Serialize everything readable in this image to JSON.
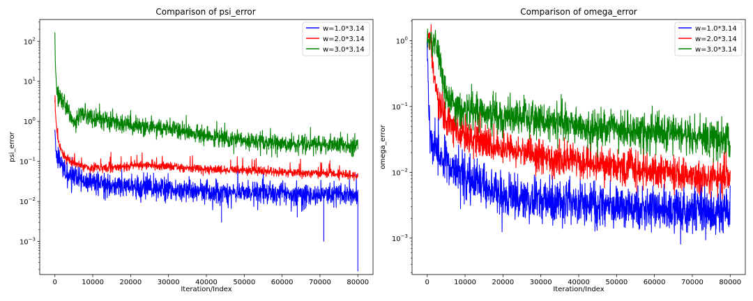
{
  "chart_data": [
    {
      "type": "line",
      "title": "Comparison of psi_error",
      "xlabel": "Iteration/Index",
      "ylabel": "psi_error",
      "yscale": "log",
      "xlim": [
        -4000,
        84000
      ],
      "ylim": [
        0.00015,
        350
      ],
      "x_ticks": [
        0,
        10000,
        20000,
        30000,
        40000,
        50000,
        60000,
        70000,
        80000
      ],
      "x_tick_labels": [
        "0",
        "10000",
        "20000",
        "30000",
        "40000",
        "50000",
        "60000",
        "70000",
        "80000"
      ],
      "y_ticks": [
        0.001,
        0.01,
        0.1,
        1,
        10,
        100
      ],
      "y_tick_base": "10",
      "y_tick_exponents": [
        "−3",
        "−2",
        "−1",
        "0",
        "1",
        "2"
      ],
      "legend_position": "top-right",
      "series": [
        {
          "name": "w=1.0*3.14",
          "color": "#0000ff",
          "x": [
            0,
            300,
            800,
            1500,
            2500,
            4000,
            6000,
            8000,
            10000,
            15000,
            20000,
            30000,
            40000,
            50000,
            60000,
            70000,
            80000
          ],
          "y": [
            0.6,
            0.18,
            0.11,
            0.085,
            0.06,
            0.045,
            0.035,
            0.03,
            0.028,
            0.025,
            0.023,
            0.02,
            0.018,
            0.017,
            0.016,
            0.015,
            0.015
          ],
          "noise": 0.32,
          "spike_low": [
            [
              71000,
              0.001
            ],
            [
              80000,
              0.00018
            ],
            [
              44000,
              0.003
            ],
            [
              64000,
              0.004
            ]
          ]
        },
        {
          "name": "w=2.0*3.14",
          "color": "#ff0000",
          "x": [
            0,
            300,
            800,
            1500,
            2500,
            4000,
            6000,
            8000,
            10000,
            15000,
            20000,
            25000,
            30000,
            35000,
            40000,
            50000,
            60000,
            70000,
            80000
          ],
          "y": [
            3.0,
            1.0,
            0.35,
            0.2,
            0.14,
            0.1,
            0.085,
            0.075,
            0.068,
            0.07,
            0.078,
            0.08,
            0.075,
            0.07,
            0.065,
            0.06,
            0.055,
            0.05,
            0.045
          ],
          "noise": 0.12
        },
        {
          "name": "w=3.0*3.14",
          "color": "#008000",
          "x": [
            0,
            150,
            500,
            1000,
            2000,
            3500,
            5000,
            6000,
            7000,
            8000,
            10000,
            15000,
            20000,
            25000,
            30000,
            35000,
            40000,
            45000,
            50000,
            55000,
            60000,
            70000,
            80000
          ],
          "y": [
            170,
            20,
            6.0,
            4.0,
            3.0,
            2.0,
            0.85,
            1.2,
            1.6,
            1.5,
            1.3,
            1.0,
            0.8,
            0.75,
            0.65,
            0.55,
            0.45,
            0.38,
            0.33,
            0.3,
            0.28,
            0.26,
            0.25
          ],
          "noise": 0.25
        }
      ]
    },
    {
      "type": "line",
      "title": "Comparison of omega_error",
      "xlabel": "Iteration/Index",
      "ylabel": "omega_error",
      "yscale": "log",
      "xlim": [
        -4000,
        84000
      ],
      "ylim": [
        0.00028,
        2.1
      ],
      "x_ticks": [
        0,
        10000,
        20000,
        30000,
        40000,
        50000,
        60000,
        70000,
        80000
      ],
      "x_tick_labels": [
        "0",
        "10000",
        "20000",
        "30000",
        "40000",
        "50000",
        "60000",
        "70000",
        "80000"
      ],
      "y_ticks": [
        0.001,
        0.01,
        0.1,
        1
      ],
      "y_tick_base": "10",
      "y_tick_exponents": [
        "−3",
        "−2",
        "−1",
        "0"
      ],
      "legend_position": "top-right",
      "series": [
        {
          "name": "w=1.0*3.14",
          "color": "#0000ff",
          "x": [
            0,
            200,
            500,
            1000,
            2000,
            3000,
            5000,
            7000,
            10000,
            15000,
            20000,
            30000,
            40000,
            50000,
            60000,
            70000,
            80000
          ],
          "y": [
            1.0,
            0.3,
            0.06,
            0.03,
            0.025,
            0.02,
            0.015,
            0.011,
            0.008,
            0.006,
            0.0045,
            0.0038,
            0.0033,
            0.003,
            0.0028,
            0.0026,
            0.0025
          ],
          "noise": 0.38
        },
        {
          "name": "w=2.0*3.14",
          "color": "#ff0000",
          "x": [
            0,
            300,
            700,
            1000,
            1500,
            2000,
            3000,
            4000,
            5000,
            7000,
            10000,
            15000,
            20000,
            30000,
            40000,
            50000,
            60000,
            70000,
            80000
          ],
          "y": [
            1.0,
            1.3,
            1.1,
            0.9,
            0.5,
            0.25,
            0.12,
            0.08,
            0.06,
            0.045,
            0.035,
            0.028,
            0.022,
            0.018,
            0.015,
            0.012,
            0.01,
            0.009,
            0.008
          ],
          "noise": 0.3
        },
        {
          "name": "w=3.0*3.14",
          "color": "#008000",
          "x": [
            0,
            500,
            1000,
            2000,
            3000,
            4000,
            5000,
            6000,
            8000,
            10000,
            15000,
            20000,
            30000,
            40000,
            50000,
            60000,
            70000,
            80000
          ],
          "y": [
            1.0,
            1.0,
            0.95,
            0.9,
            0.7,
            0.3,
            0.15,
            0.12,
            0.1,
            0.09,
            0.08,
            0.07,
            0.06,
            0.05,
            0.045,
            0.04,
            0.035,
            0.03
          ],
          "noise": 0.32
        }
      ]
    }
  ]
}
